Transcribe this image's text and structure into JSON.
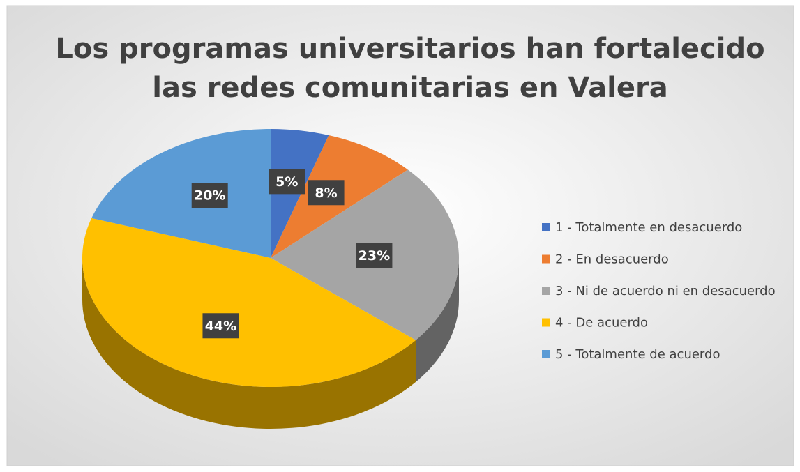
{
  "chart_data": {
    "type": "pie",
    "title": [
      "Los programas universitarios han fortalecido",
      "las redes comunitarias en Valera"
    ],
    "categories": [
      "1 - Totalmente en desacuerdo",
      "2 - En desacuerdo",
      "3 - Ni de acuerdo ni en desacuerdo",
      "4 - De acuerdo",
      "5 - Totalmente de acuerdo"
    ],
    "values": [
      5,
      8,
      23,
      44,
      20
    ],
    "value_labels": [
      "5%",
      "8%",
      "23%",
      "44%",
      "20%"
    ],
    "colors": [
      "#4472c4",
      "#ed7d31",
      "#a5a5a5",
      "#ffc000",
      "#5b9bd5"
    ],
    "legend": "right"
  }
}
